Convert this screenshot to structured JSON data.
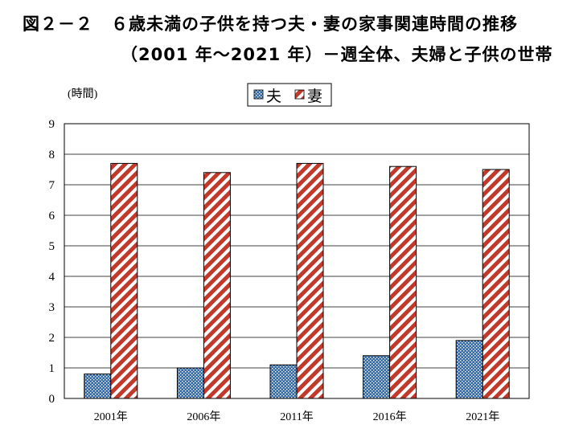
{
  "title_line1": "図２－２　６歳未満の子供を持つ夫・妻の家事関連時間の推移",
  "title_line2": "（2001 年～2021 年）－週全体、夫婦と子供の世帯",
  "colors": {
    "husband": "#2e6db4",
    "wife": "#c0392b"
  },
  "chart_data": {
    "type": "bar",
    "title": "図２－２　６歳未満の子供を持つ夫・妻の家事関連時間の推移（2001 年～2021 年）－週全体、夫婦と子供の世帯",
    "ylabel": "(時間)",
    "xlabel": "",
    "ylim": [
      0,
      9
    ],
    "yticks": [
      0,
      1,
      2,
      3,
      4,
      5,
      6,
      7,
      8,
      9
    ],
    "grid": true,
    "legend": "top-center",
    "categories": [
      "2001年",
      "2006年",
      "2011年",
      "2016年",
      "2021年"
    ],
    "series": [
      {
        "name": "夫",
        "values": [
          0.8,
          1.0,
          1.1,
          1.4,
          1.9
        ]
      },
      {
        "name": "妻",
        "values": [
          7.7,
          7.4,
          7.7,
          7.6,
          7.5
        ]
      }
    ]
  }
}
